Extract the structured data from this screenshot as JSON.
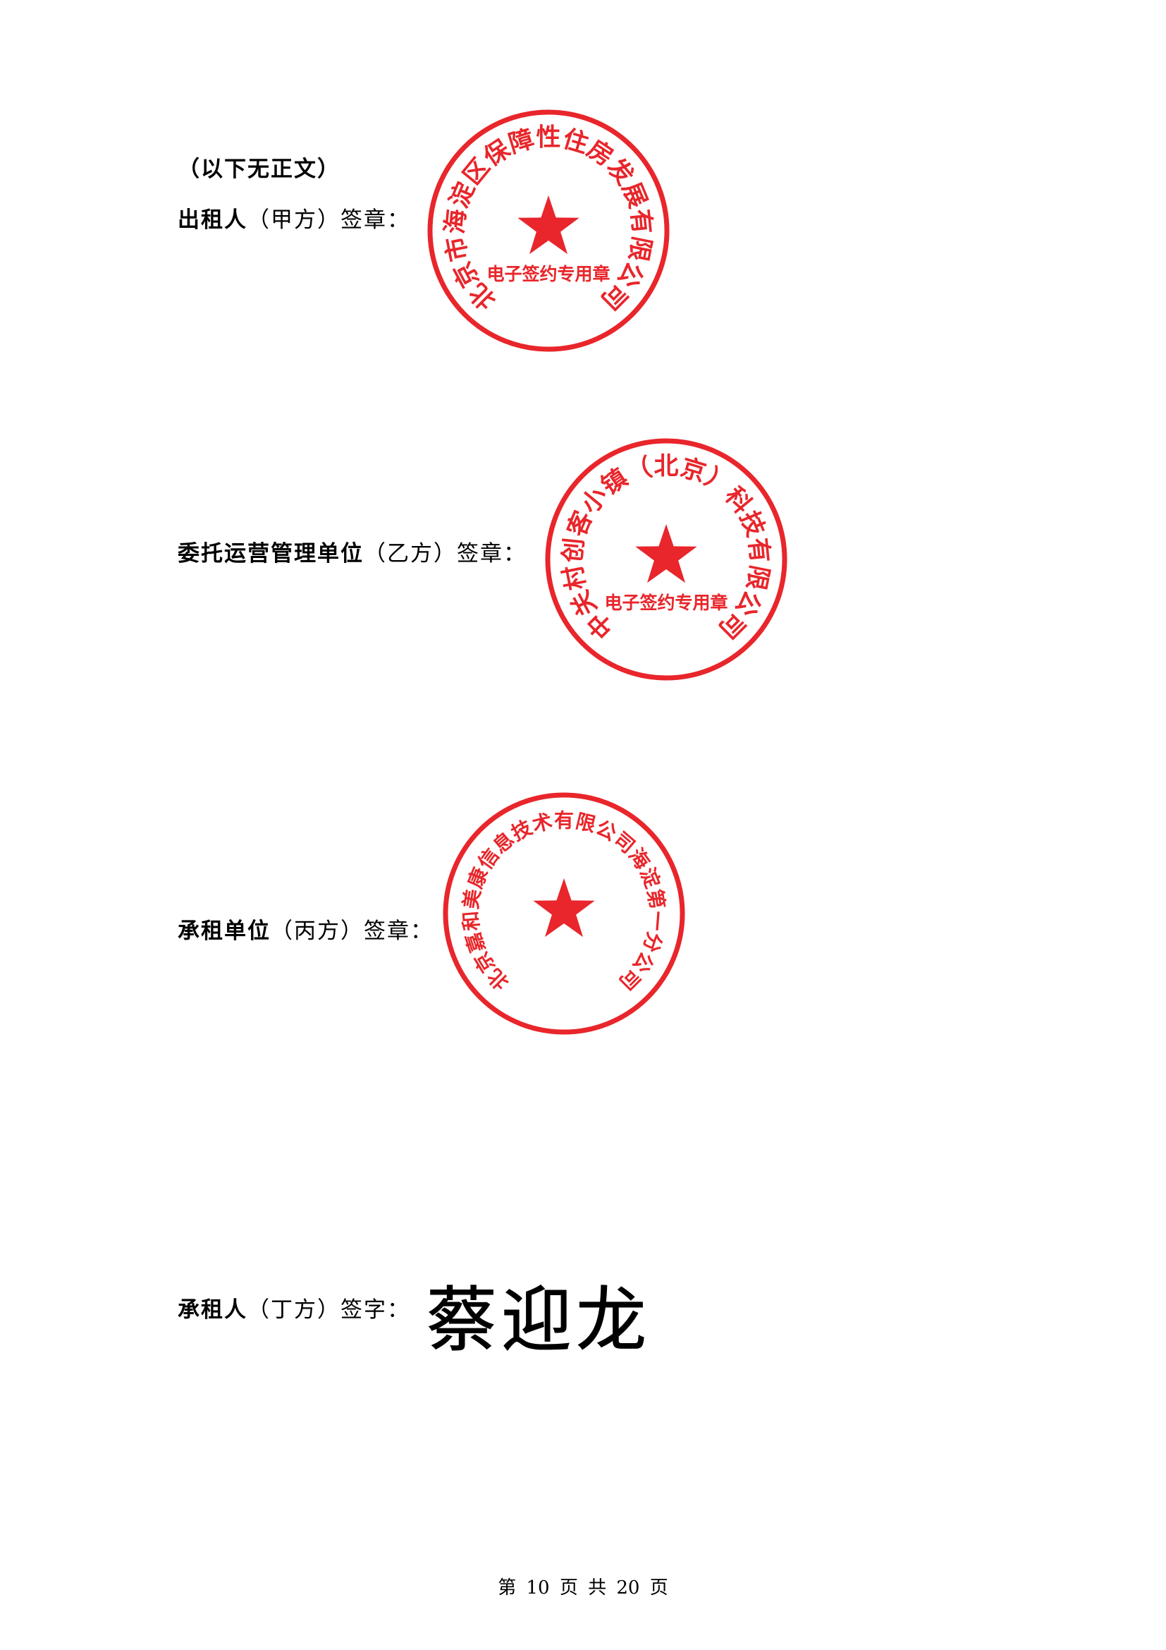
{
  "doc": {
    "intro": "（以下无正文）",
    "blocks": [
      {
        "strong": "出租人",
        "rest": "（甲方）签章："
      },
      {
        "strong": "委托运营管理单位",
        "rest": "（乙方）签章："
      },
      {
        "strong": "承租单位",
        "rest": "（丙方）签章："
      },
      {
        "strong": "承租人",
        "rest": "（丁方）签字："
      }
    ],
    "signature": "蔡迎龙",
    "footer": "第 10 页 共 20 页"
  },
  "seals": [
    {
      "ring_text": "北京市海淀区保障性住房发展有限公司",
      "center_text": "电子签约专用章"
    },
    {
      "ring_text": "中关村创客小镇（北京）科技有限公司",
      "center_text": "电子签约专用章"
    },
    {
      "ring_text": "北京嘉和美康信息技术有限公司海淀第一分公司",
      "center_text": ""
    }
  ],
  "colors": {
    "seal_red": "#e8262b",
    "ink": "#000000"
  },
  "icons": [
    "star-icon"
  ]
}
